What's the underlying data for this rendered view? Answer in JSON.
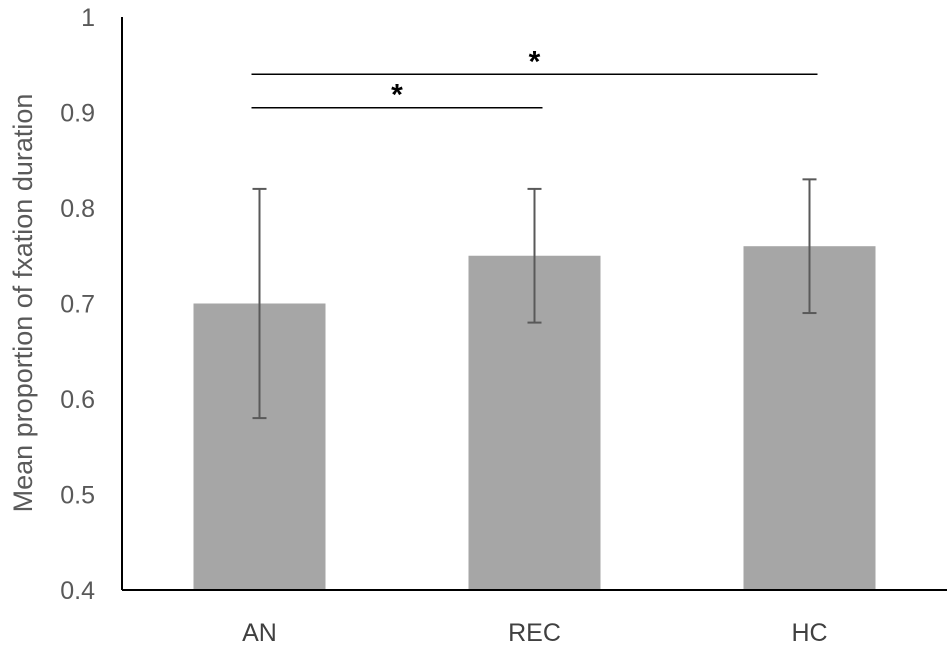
{
  "chart_data": {
    "type": "bar",
    "title": "",
    "xlabel": "",
    "ylabel": "Mean proportion of fxation duration",
    "categories": [
      "AN",
      "REC",
      "HC"
    ],
    "values": [
      0.7,
      0.75,
      0.76
    ],
    "error_low": [
      0.58,
      0.68,
      0.69
    ],
    "error_high": [
      0.82,
      0.82,
      0.83
    ],
    "ylim": [
      0.4,
      1.0
    ],
    "yticks": [
      0.4,
      0.5,
      0.6,
      0.7,
      0.8,
      0.9,
      1.0
    ],
    "ytick_labels": [
      "0.4",
      "0.5",
      "0.6",
      "0.7",
      "0.8",
      "0.9",
      "1"
    ],
    "grid": false,
    "legend": "none",
    "bar_color": "#a6a6a6",
    "error_bar_color": "#595959",
    "significance": [
      {
        "from": "AN",
        "to": "REC",
        "label": "*",
        "y": 0.905
      },
      {
        "from": "AN",
        "to": "HC",
        "label": "*",
        "y": 0.94
      }
    ]
  }
}
